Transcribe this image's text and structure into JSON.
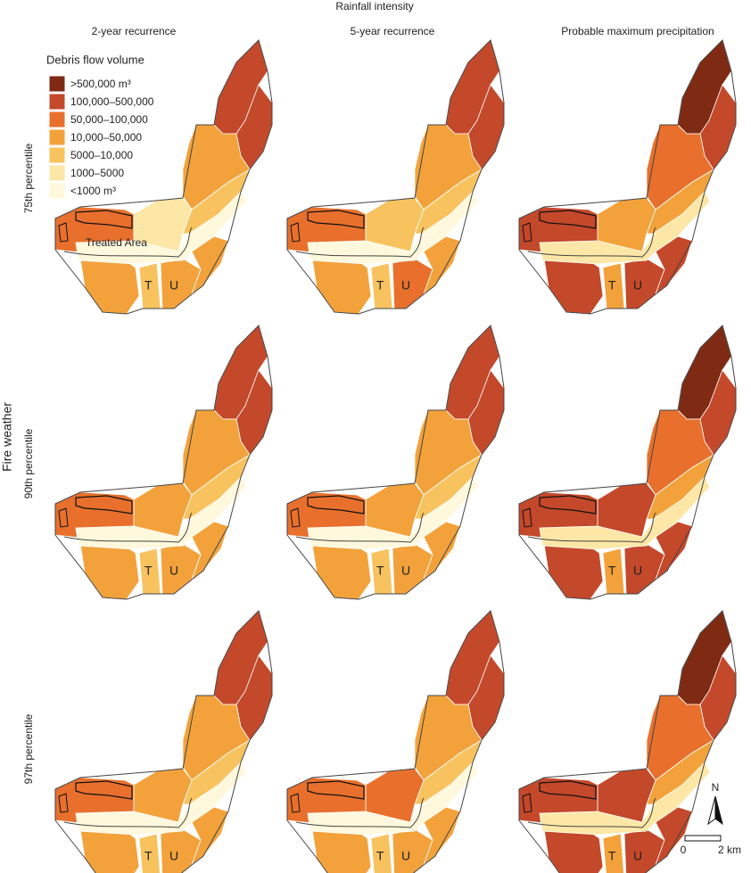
{
  "title": "Rainfall intensity",
  "columns": [
    "2-year recurrence",
    "5-year recurrence",
    "Probable maximum precipitation"
  ],
  "row_axis": "Fire weather",
  "rows": [
    "75th percentile",
    "90th percentile",
    "97th percentile"
  ],
  "legend": {
    "title": "Debris flow volume",
    "items": [
      {
        "label": ">500,000 m³",
        "color": "#7f2a13"
      },
      {
        "label": "100,000–500,000",
        "color": "#c4482a"
      },
      {
        "label": "50,000–100,000",
        "color": "#e8702c"
      },
      {
        "label": "10,000–50,000",
        "color": "#f3a23b"
      },
      {
        "label": "5000–10,000",
        "color": "#f8c35e"
      },
      {
        "label": "1000–5000",
        "color": "#fde7a6"
      },
      {
        "label": "<1000 m³",
        "color": "#fff8dc"
      }
    ]
  },
  "map": {
    "treated_area": "Treated Area",
    "subbasins": [
      "T",
      "U"
    ],
    "panels": [
      [
        [
          1,
          1,
          3,
          4,
          5,
          2,
          3,
          4,
          3,
          3,
          6
        ],
        [
          1,
          1,
          3,
          4,
          4,
          2,
          3,
          4,
          2,
          3,
          6
        ],
        [
          0,
          1,
          2,
          3,
          3,
          1,
          1,
          3,
          1,
          1,
          5
        ]
      ],
      [
        [
          1,
          1,
          3,
          4,
          3,
          2,
          3,
          4,
          3,
          3,
          6
        ],
        [
          1,
          1,
          3,
          4,
          3,
          2,
          3,
          4,
          3,
          3,
          6
        ],
        [
          0,
          1,
          2,
          3,
          1,
          1,
          1,
          3,
          1,
          1,
          5
        ]
      ],
      [
        [
          1,
          1,
          3,
          4,
          3,
          2,
          3,
          4,
          3,
          3,
          6
        ],
        [
          1,
          1,
          3,
          4,
          2,
          2,
          3,
          4,
          3,
          3,
          6
        ],
        [
          0,
          1,
          2,
          3,
          1,
          1,
          1,
          3,
          1,
          1,
          5
        ]
      ]
    ]
  },
  "north": "N",
  "scale_bar": [
    "0",
    "2 km"
  ]
}
